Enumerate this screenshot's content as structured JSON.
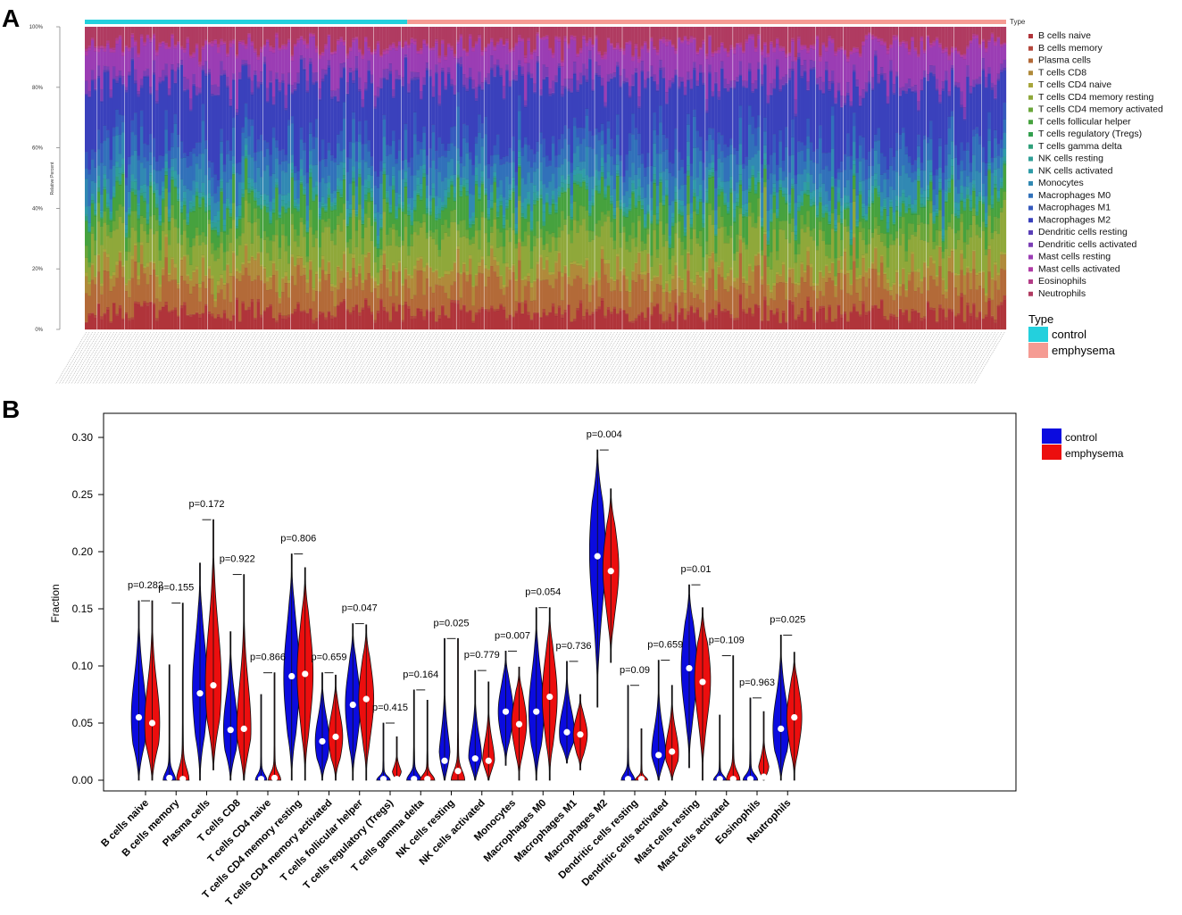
{
  "panel_labels": [
    "A",
    "B"
  ],
  "chart_data": [
    {
      "type": "bar",
      "subtype": "stacked-100-percent",
      "panel": "A",
      "ylabel": "Relative Percent",
      "yticks": [
        "0%",
        "20%",
        "40%",
        "60%",
        "80%",
        "100%"
      ],
      "ylim": [
        0,
        100
      ],
      "n_samples": 300,
      "sample_groups": [
        {
          "name": "control",
          "count": 105,
          "color": "#23d0dd"
        },
        {
          "name": "emphysema",
          "count": 195,
          "color": "#f59b93"
        }
      ],
      "type_label": "Type",
      "cell_types": [
        "B cells naive",
        "B cells memory",
        "Plasma cells",
        "T cells CD8",
        "T cells CD4 naive",
        "T cells CD4 memory resting",
        "T cells CD4 memory activated",
        "T cells follicular helper",
        "T cells regulatory (Tregs)",
        "T cells gamma delta",
        "NK cells resting",
        "NK cells activated",
        "Monocytes",
        "Macrophages M0",
        "Macrophages M1",
        "Macrophages M2",
        "Dendritic cells resting",
        "Dendritic cells activated",
        "Mast cells resting",
        "Mast cells activated",
        "Eosinophils",
        "Neutrophils"
      ],
      "colors": [
        "#b0343a",
        "#b4473c",
        "#b36a38",
        "#b08a3a",
        "#a8a63c",
        "#8fa83a",
        "#6aa63a",
        "#46a23e",
        "#33a04e",
        "#30a07a",
        "#2f9f97",
        "#2f9ca8",
        "#3189b3",
        "#3171ba",
        "#3559bd",
        "#3a41bc",
        "#5a3fb8",
        "#7b3eb5",
        "#9b3db4",
        "#b03ba5",
        "#b33c86",
        "#b03b61"
      ],
      "mean_fractions": [
        5.5,
        0.7,
        8.5,
        4.5,
        0.8,
        9.2,
        3.8,
        7.1,
        0.3,
        0.9,
        1.7,
        1.8,
        5.4,
        7.0,
        4.1,
        18.7,
        0.5,
        2.5,
        9.0,
        0.9,
        0.5,
        5.5
      ],
      "legend_entries": [
        "B cells naive",
        "B cells memory",
        "Plasma cells",
        "T cells CD8",
        "T cells CD4 naive",
        "T cells CD4 memory resting",
        "T cells CD4 memory activated",
        "T cells follicular helper",
        "T cells regulatory (Tregs)",
        "T cells gamma delta",
        "NK cells resting",
        "NK cells activated",
        "Monocytes",
        "Macrophages M0",
        "Macrophages M1",
        "Macrophages M2",
        "Dendritic cells resting",
        "Dendritic cells activated",
        "Mast cells resting",
        "Mast cells activated",
        "Eosinophils",
        "Neutrophils"
      ],
      "type_legend_title": "Type",
      "type_legend_entries": [
        "control",
        "emphysema"
      ]
    },
    {
      "type": "violin",
      "panel": "B",
      "ylabel": "Fraction",
      "ylim": [
        0,
        0.33
      ],
      "yticks": [
        "0.00",
        "0.05",
        "0.10",
        "0.15",
        "0.20",
        "0.25",
        "0.30"
      ],
      "legend": [
        {
          "name": "control",
          "color": "#0b0bdf"
        },
        {
          "name": "emphysema",
          "color": "#ec0e0e"
        }
      ],
      "categories": [
        "B cells naive",
        "B cells memory",
        "Plasma cells",
        "T cells CD8",
        "T cells CD4 naive",
        "T cells CD4 memory resting",
        "T cells CD4 memory activated",
        "T cells follicular helper",
        "T cells regulatory (Tregs)",
        "T cells gamma delta",
        "NK cells resting",
        "NK cells activated",
        "Monocytes",
        "Macrophages M0",
        "Macrophages M1",
        "Macrophages M2",
        "Dendritic cells resting",
        "Dendritic cells activated",
        "Mast cells resting",
        "Mast cells activated",
        "Eosinophils",
        "Neutrophils"
      ],
      "p_values": [
        "p=0.282",
        "p=0.155",
        "p=0.172",
        "p=0.922",
        "p=0.866",
        "p=0.806",
        "p=0.659",
        "p=0.047",
        "p=0.415",
        "p=0.164",
        "p=0.025",
        "p=0.779",
        "p=0.007",
        "p=0.054",
        "p=0.736",
        "p=0.004",
        "p=0.09",
        "p=0.659",
        "p=0.01",
        "p=0.109",
        "p=0.963",
        "p=0.025"
      ],
      "bracket_y": [
        0.157,
        0.155,
        0.228,
        0.18,
        0.094,
        0.198,
        0.094,
        0.137,
        0.05,
        0.079,
        0.124,
        0.096,
        0.113,
        0.151,
        0.104,
        0.289,
        0.083,
        0.105,
        0.171,
        0.109,
        0.072,
        0.127
      ],
      "series": [
        {
          "name": "control",
          "medians": [
            0.055,
            0.002,
            0.076,
            0.044,
            0.001,
            0.091,
            0.034,
            0.066,
            0.001,
            0.001,
            0.017,
            0.019,
            0.06,
            0.06,
            0.042,
            0.196,
            0.001,
            0.022,
            0.098,
            0.001,
            0.001,
            0.045
          ],
          "mins": [
            0.0,
            0.0,
            0.0,
            0.0,
            0.0,
            0.0,
            0.0,
            0.0,
            0.0,
            0.0,
            0.0,
            0.0,
            0.013,
            0.0,
            0.015,
            0.064,
            0.0,
            0.0,
            0.011,
            0.0,
            0.0,
            0.0
          ],
          "maxs": [
            0.157,
            0.101,
            0.19,
            0.13,
            0.075,
            0.198,
            0.094,
            0.137,
            0.05,
            0.079,
            0.124,
            0.096,
            0.113,
            0.151,
            0.104,
            0.289,
            0.083,
            0.105,
            0.171,
            0.057,
            0.072,
            0.127
          ],
          "modes": [
            0.055,
            0.003,
            0.08,
            0.045,
            0.002,
            0.09,
            0.034,
            0.066,
            0.002,
            0.002,
            0.012,
            0.018,
            0.06,
            0.06,
            0.042,
            0.2,
            0.002,
            0.022,
            0.098,
            0.002,
            0.002,
            0.045
          ],
          "max_half_widths": [
            0.8,
            0.6,
            0.8,
            0.75,
            0.55,
            0.85,
            0.75,
            0.8,
            0.65,
            0.7,
            0.65,
            0.7,
            0.8,
            0.8,
            0.8,
            0.85,
            0.65,
            0.75,
            0.85,
            0.6,
            0.7,
            0.85
          ]
        },
        {
          "name": "emphysema",
          "medians": [
            0.05,
            0.001,
            0.083,
            0.045,
            0.002,
            0.093,
            0.038,
            0.071,
            0.001,
            0.001,
            0.008,
            0.017,
            0.049,
            0.073,
            0.04,
            0.183,
            0.001,
            0.025,
            0.086,
            0.001,
            0.003,
            0.055
          ],
          "mins": [
            0.0,
            0.0,
            0.009,
            0.0,
            0.0,
            0.0,
            0.0,
            0.0,
            0.0,
            0.0,
            0.0,
            0.0,
            0.0,
            0.0,
            0.009,
            0.103,
            0.0,
            0.0,
            0.0,
            0.0,
            0.0,
            0.0
          ],
          "maxs": [
            0.157,
            0.155,
            0.228,
            0.18,
            0.094,
            0.186,
            0.092,
            0.136,
            0.038,
            0.07,
            0.124,
            0.086,
            0.099,
            0.151,
            0.075,
            0.255,
            0.045,
            0.083,
            0.151,
            0.109,
            0.06,
            0.112
          ],
          "modes": [
            0.05,
            0.002,
            0.085,
            0.045,
            0.003,
            0.093,
            0.038,
            0.071,
            0.002,
            0.002,
            0.006,
            0.015,
            0.05,
            0.073,
            0.04,
            0.185,
            0.002,
            0.024,
            0.088,
            0.002,
            0.003,
            0.055
          ],
          "max_half_widths": [
            0.8,
            0.6,
            0.85,
            0.75,
            0.6,
            0.85,
            0.75,
            0.8,
            0.6,
            0.7,
            0.65,
            0.65,
            0.8,
            0.8,
            0.75,
            0.85,
            0.6,
            0.7,
            0.85,
            0.65,
            0.7,
            0.8
          ]
        }
      ]
    }
  ]
}
